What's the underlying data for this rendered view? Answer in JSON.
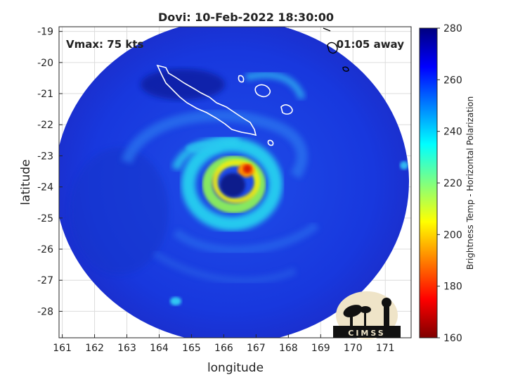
{
  "title": "Dovi: 10-Feb-2022 18:30:00",
  "vmax_label": "Vmax: 75 kts",
  "time_away_label": "01:05 away",
  "xlabel": "longitude",
  "ylabel": "latitude",
  "colorbar_label": "Brightness Temp - Horizontal Polarization",
  "logo_text": "CIMSS",
  "x_ticks": [
    "161",
    "162",
    "163",
    "164",
    "165",
    "166",
    "167",
    "168",
    "169",
    "170",
    "171"
  ],
  "y_ticks": [
    "-19",
    "-20",
    "-21",
    "-22",
    "-23",
    "-24",
    "-25",
    "-26",
    "-27",
    "-28"
  ],
  "colorbar_ticks": [
    "280",
    "260",
    "240",
    "220",
    "200",
    "180",
    "160"
  ],
  "chart_data": {
    "type": "heatmap",
    "title": "Dovi: 10-Feb-2022 18:30:00",
    "xlabel": "longitude",
    "ylabel": "latitude",
    "xlim": [
      160.9,
      171.8
    ],
    "ylim": [
      -28.85,
      -18.85
    ],
    "colorbar": {
      "label": "Brightness Temp - Horizontal Polarization",
      "range": [
        160,
        280
      ],
      "colormap": "jet"
    },
    "storm_center": {
      "lon": 166.05,
      "lat": -23.95
    },
    "grid": true,
    "annotations": [
      "Vmax: 75 kts",
      "01:05 away"
    ]
  },
  "colors": {
    "background_cold": "#1a3de0",
    "eyewall_red": "#d81e05",
    "cyan": "#25e0f0",
    "yellow": "#f5f000",
    "eye_dark": "#101a8c"
  }
}
